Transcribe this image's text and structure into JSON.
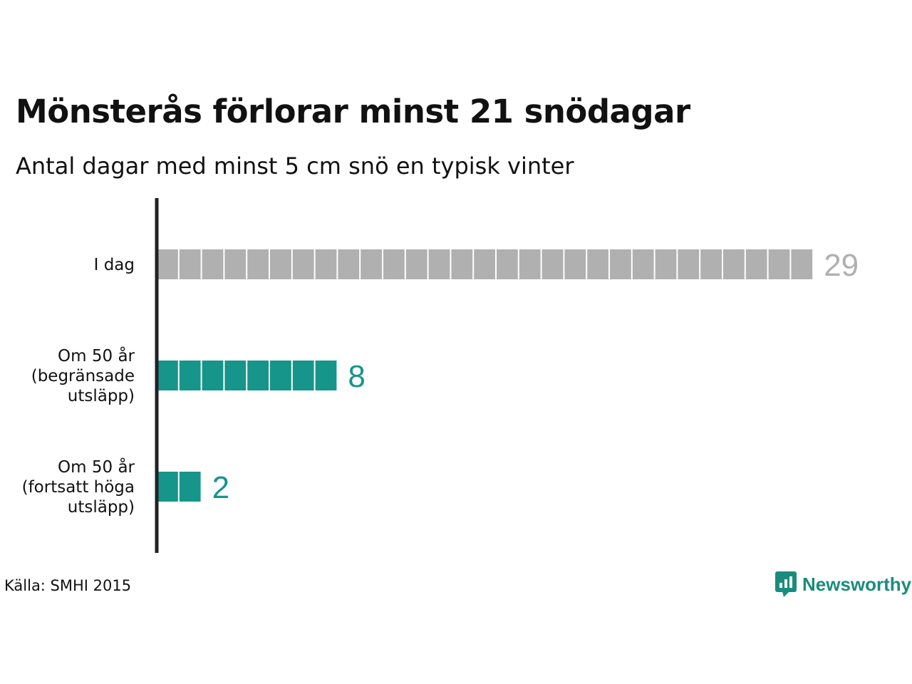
{
  "title": "Mönsterås förlorar minst 21 snödagar",
  "subtitle": "Antal dagar med minst 5 cm snö en typisk vinter",
  "source": "Källa: SMHI 2015",
  "brand": {
    "name": "Newsworthy",
    "icon": "bar-chart-speech-bubble-icon"
  },
  "colors": {
    "today": "#b0b0b0",
    "future": "#16958a",
    "axis": "#222222",
    "label_today": "#b0b0b0",
    "label_future": "#16958a"
  },
  "chart_data": {
    "type": "bar",
    "orientation": "horizontal",
    "style": "unit-squares",
    "categories": [
      [
        "I dag"
      ],
      [
        "Om 50 år",
        "(begränsade",
        "utsläpp)"
      ],
      [
        "Om 50 år",
        "(fortsatt höga",
        "utsläpp)"
      ]
    ],
    "values": [
      29,
      8,
      2
    ],
    "bar_colors": [
      "#b0b0b0",
      "#16958a",
      "#16958a"
    ],
    "data_labels": [
      "29",
      "8",
      "2"
    ],
    "grid": false,
    "legend": "none"
  }
}
